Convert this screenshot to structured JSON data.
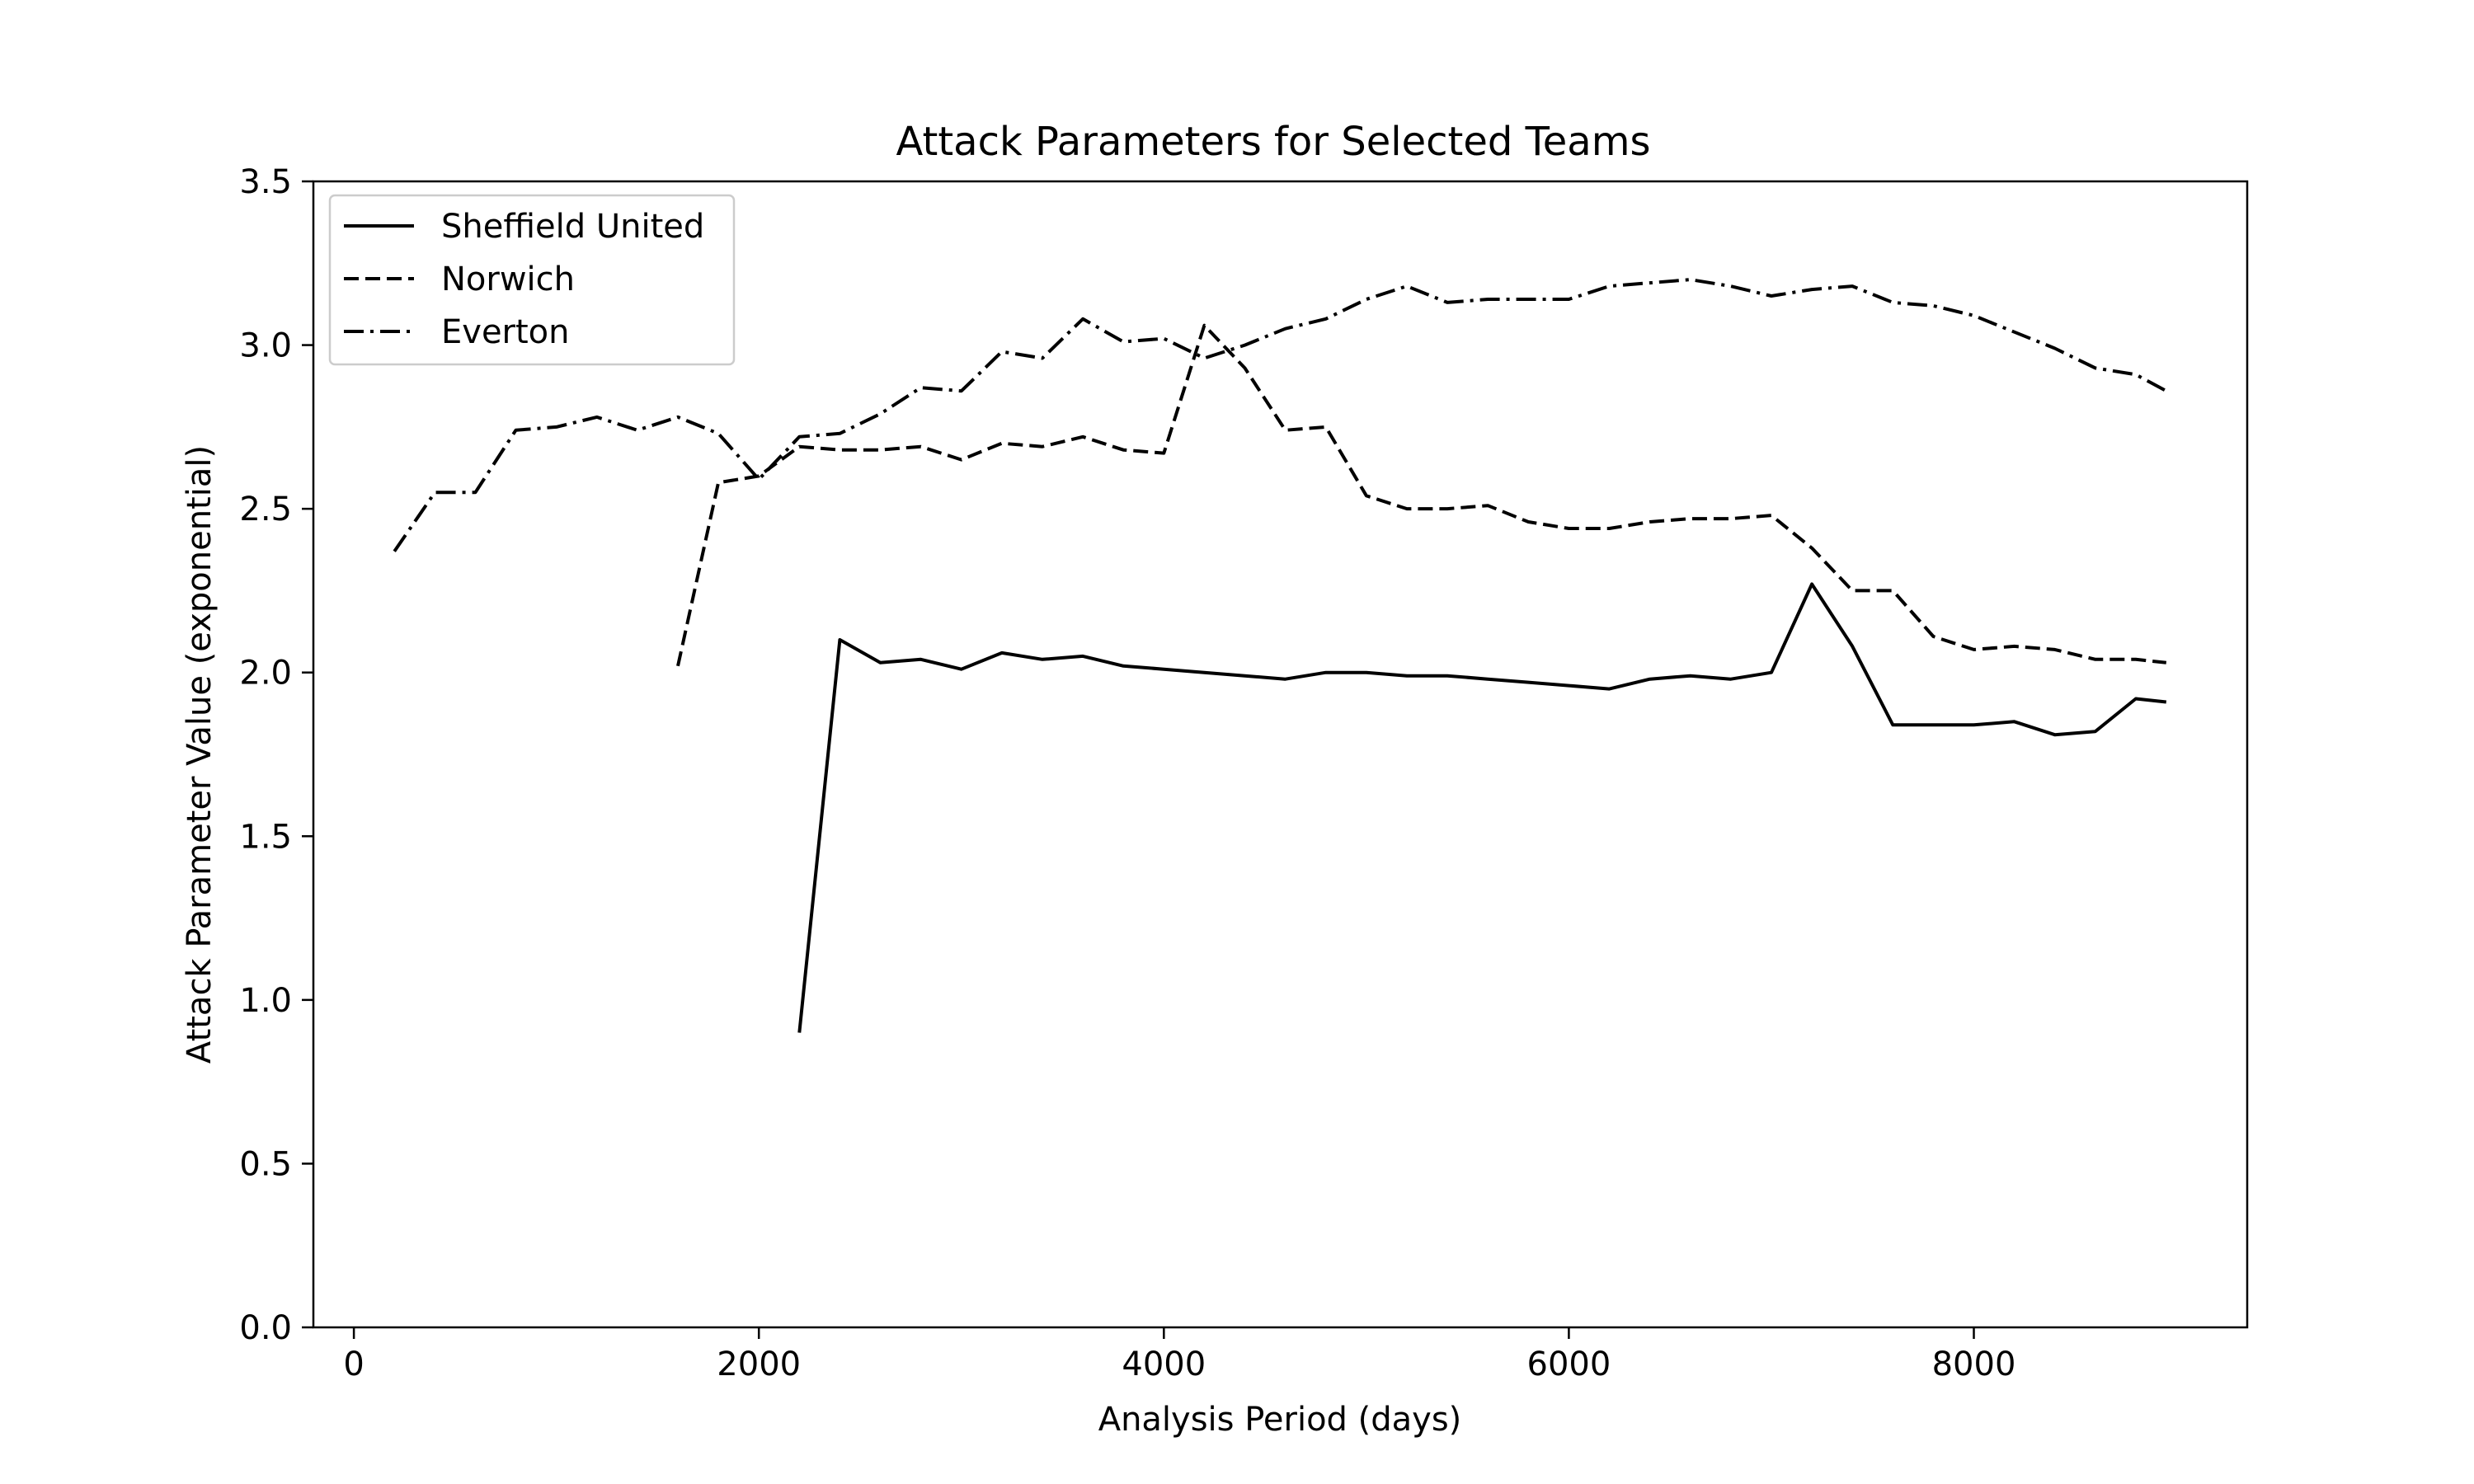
{
  "chart_data": {
    "type": "line",
    "title": "Attack Parameters for Selected Teams",
    "xlabel": "Analysis Period (days)",
    "ylabel": "Attack Parameter Value (exponential)",
    "xlim": [
      -200,
      9350
    ],
    "ylim": [
      0,
      3.5
    ],
    "xticks": [
      0,
      2000,
      4000,
      6000,
      8000
    ],
    "xtick_labels": [
      "0",
      "2000",
      "4000",
      "6000",
      "8000"
    ],
    "yticks": [
      0.0,
      0.5,
      1.0,
      1.5,
      2.0,
      2.5,
      3.0,
      3.5
    ],
    "ytick_labels": [
      "0.0",
      "0.5",
      "1.0",
      "1.5",
      "2.0",
      "2.5",
      "3.0",
      "3.5"
    ],
    "grid": false,
    "legend_position": "top-left",
    "line_color": "#000000",
    "series": [
      {
        "name": "Sheffield United",
        "dash": "solid",
        "x": [
          2200,
          2400,
          2600,
          2800,
          3000,
          3200,
          3400,
          3600,
          3800,
          4000,
          4200,
          4400,
          4600,
          4800,
          5000,
          5200,
          5400,
          5600,
          5800,
          6000,
          6200,
          6400,
          6600,
          6800,
          7000,
          7200,
          7400,
          7600,
          7800,
          8000,
          8200,
          8400,
          8600,
          8800,
          8950
        ],
        "y": [
          0.9,
          2.1,
          2.03,
          2.04,
          2.01,
          2.06,
          2.04,
          2.05,
          2.02,
          2.01,
          2.0,
          1.99,
          1.98,
          2.0,
          2.0,
          1.99,
          1.99,
          1.98,
          1.97,
          1.96,
          1.95,
          1.98,
          1.99,
          1.98,
          2.0,
          2.27,
          2.08,
          1.84,
          1.84,
          1.84,
          1.85,
          1.81,
          1.82,
          1.92,
          1.91
        ]
      },
      {
        "name": "Norwich",
        "dash": "dashed",
        "x": [
          1600,
          1800,
          2000,
          2200,
          2400,
          2600,
          2800,
          3000,
          3200,
          3400,
          3600,
          3800,
          4000,
          4200,
          4400,
          4600,
          4800,
          5000,
          5200,
          5400,
          5600,
          5800,
          6000,
          6200,
          6400,
          6600,
          6800,
          7000,
          7200,
          7400,
          7600,
          7800,
          8000,
          8200,
          8400,
          8600,
          8800,
          8950
        ],
        "y": [
          2.02,
          2.58,
          2.6,
          2.69,
          2.68,
          2.68,
          2.69,
          2.65,
          2.7,
          2.69,
          2.72,
          2.68,
          2.67,
          3.06,
          2.93,
          2.74,
          2.75,
          2.54,
          2.5,
          2.5,
          2.51,
          2.46,
          2.44,
          2.44,
          2.46,
          2.47,
          2.47,
          2.48,
          2.38,
          2.25,
          2.25,
          2.11,
          2.07,
          2.08,
          2.07,
          2.04,
          2.04,
          2.03
        ]
      },
      {
        "name": "Everton",
        "dash": "dashdot",
        "x": [
          200,
          400,
          600,
          800,
          1000,
          1200,
          1400,
          1600,
          1800,
          2000,
          2200,
          2400,
          2600,
          2800,
          3000,
          3200,
          3400,
          3600,
          3800,
          4000,
          4200,
          4400,
          4600,
          4800,
          5000,
          5200,
          5400,
          5600,
          5800,
          6000,
          6200,
          6400,
          6600,
          6800,
          7000,
          7200,
          7400,
          7600,
          7800,
          8000,
          8200,
          8400,
          8600,
          8800,
          8950
        ],
        "y": [
          2.37,
          2.55,
          2.55,
          2.74,
          2.75,
          2.78,
          2.74,
          2.78,
          2.73,
          2.59,
          2.72,
          2.73,
          2.79,
          2.87,
          2.86,
          2.98,
          2.96,
          3.08,
          3.01,
          3.02,
          2.96,
          3.0,
          3.05,
          3.08,
          3.14,
          3.18,
          3.13,
          3.14,
          3.14,
          3.14,
          3.18,
          3.19,
          3.2,
          3.18,
          3.15,
          3.17,
          3.18,
          3.13,
          3.12,
          3.09,
          3.04,
          2.99,
          2.93,
          2.91,
          2.86
        ]
      }
    ]
  }
}
